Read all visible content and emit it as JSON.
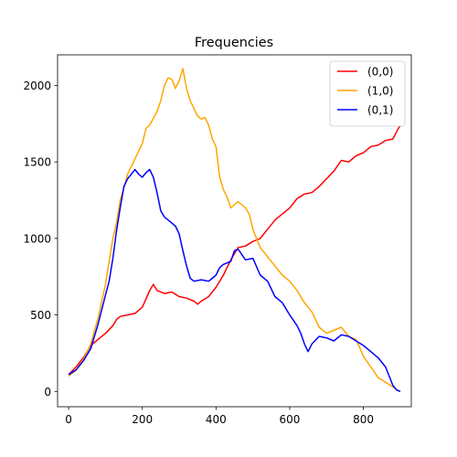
{
  "chart_data": {
    "type": "line",
    "title": "Frequencies",
    "xlabel": "",
    "ylabel": "",
    "xlim": [
      -30,
      930
    ],
    "ylim": [
      -100,
      2200
    ],
    "xticks": [
      0,
      200,
      400,
      600,
      800
    ],
    "yticks": [
      0,
      500,
      1000,
      1500,
      2000
    ],
    "grid": false,
    "legend_position": "top-right",
    "series": [
      {
        "name": "(0,0)",
        "color": "#ff0000",
        "points": [
          [
            0,
            110
          ],
          [
            20,
            160
          ],
          [
            40,
            220
          ],
          [
            60,
            300
          ],
          [
            80,
            340
          ],
          [
            100,
            380
          ],
          [
            120,
            430
          ],
          [
            130,
            470
          ],
          [
            140,
            490
          ],
          [
            160,
            500
          ],
          [
            180,
            510
          ],
          [
            200,
            550
          ],
          [
            220,
            660
          ],
          [
            230,
            700
          ],
          [
            240,
            660
          ],
          [
            260,
            640
          ],
          [
            280,
            650
          ],
          [
            300,
            620
          ],
          [
            320,
            610
          ],
          [
            340,
            590
          ],
          [
            350,
            570
          ],
          [
            360,
            590
          ],
          [
            380,
            620
          ],
          [
            400,
            680
          ],
          [
            420,
            760
          ],
          [
            440,
            860
          ],
          [
            460,
            940
          ],
          [
            480,
            950
          ],
          [
            500,
            980
          ],
          [
            520,
            1000
          ],
          [
            540,
            1060
          ],
          [
            560,
            1120
          ],
          [
            580,
            1160
          ],
          [
            600,
            1200
          ],
          [
            620,
            1260
          ],
          [
            640,
            1290
          ],
          [
            660,
            1300
          ],
          [
            680,
            1340
          ],
          [
            700,
            1390
          ],
          [
            720,
            1440
          ],
          [
            740,
            1510
          ],
          [
            760,
            1500
          ],
          [
            780,
            1540
          ],
          [
            800,
            1560
          ],
          [
            820,
            1600
          ],
          [
            840,
            1610
          ],
          [
            860,
            1640
          ],
          [
            880,
            1650
          ],
          [
            895,
            1720
          ],
          [
            900,
            1735
          ]
        ]
      },
      {
        "name": "(1,0)",
        "color": "#ffa500",
        "points": [
          [
            0,
            100
          ],
          [
            20,
            140
          ],
          [
            40,
            210
          ],
          [
            60,
            310
          ],
          [
            80,
            480
          ],
          [
            100,
            700
          ],
          [
            110,
            850
          ],
          [
            120,
            1000
          ],
          [
            130,
            1100
          ],
          [
            140,
            1250
          ],
          [
            150,
            1330
          ],
          [
            160,
            1420
          ],
          [
            180,
            1520
          ],
          [
            200,
            1620
          ],
          [
            210,
            1720
          ],
          [
            220,
            1740
          ],
          [
            240,
            1830
          ],
          [
            250,
            1900
          ],
          [
            260,
            2000
          ],
          [
            270,
            2050
          ],
          [
            280,
            2040
          ],
          [
            290,
            1980
          ],
          [
            300,
            2030
          ],
          [
            310,
            2110
          ],
          [
            320,
            1980
          ],
          [
            330,
            1900
          ],
          [
            340,
            1850
          ],
          [
            350,
            1800
          ],
          [
            360,
            1780
          ],
          [
            370,
            1790
          ],
          [
            380,
            1740
          ],
          [
            390,
            1650
          ],
          [
            400,
            1600
          ],
          [
            410,
            1400
          ],
          [
            420,
            1320
          ],
          [
            430,
            1270
          ],
          [
            440,
            1200
          ],
          [
            460,
            1240
          ],
          [
            480,
            1200
          ],
          [
            490,
            1160
          ],
          [
            500,
            1060
          ],
          [
            510,
            1000
          ],
          [
            520,
            940
          ],
          [
            540,
            880
          ],
          [
            560,
            820
          ],
          [
            580,
            760
          ],
          [
            600,
            720
          ],
          [
            620,
            660
          ],
          [
            640,
            580
          ],
          [
            660,
            520
          ],
          [
            680,
            420
          ],
          [
            700,
            380
          ],
          [
            720,
            400
          ],
          [
            740,
            420
          ],
          [
            760,
            360
          ],
          [
            780,
            340
          ],
          [
            800,
            230
          ],
          [
            820,
            160
          ],
          [
            840,
            90
          ],
          [
            860,
            60
          ],
          [
            880,
            30
          ],
          [
            890,
            10
          ],
          [
            900,
            0
          ]
        ]
      },
      {
        "name": "(0,1)",
        "color": "#0000ff",
        "points": [
          [
            0,
            110
          ],
          [
            20,
            140
          ],
          [
            40,
            200
          ],
          [
            60,
            280
          ],
          [
            80,
            440
          ],
          [
            100,
            630
          ],
          [
            110,
            720
          ],
          [
            120,
            870
          ],
          [
            130,
            1050
          ],
          [
            140,
            1200
          ],
          [
            150,
            1340
          ],
          [
            160,
            1390
          ],
          [
            170,
            1420
          ],
          [
            180,
            1450
          ],
          [
            190,
            1420
          ],
          [
            200,
            1400
          ],
          [
            210,
            1430
          ],
          [
            220,
            1450
          ],
          [
            230,
            1400
          ],
          [
            240,
            1300
          ],
          [
            250,
            1180
          ],
          [
            260,
            1140
          ],
          [
            280,
            1100
          ],
          [
            290,
            1080
          ],
          [
            300,
            1030
          ],
          [
            310,
            920
          ],
          [
            320,
            820
          ],
          [
            330,
            740
          ],
          [
            340,
            720
          ],
          [
            360,
            730
          ],
          [
            380,
            720
          ],
          [
            400,
            760
          ],
          [
            410,
            810
          ],
          [
            420,
            830
          ],
          [
            440,
            850
          ],
          [
            450,
            920
          ],
          [
            460,
            930
          ],
          [
            480,
            860
          ],
          [
            500,
            870
          ],
          [
            520,
            760
          ],
          [
            540,
            720
          ],
          [
            560,
            620
          ],
          [
            580,
            580
          ],
          [
            600,
            500
          ],
          [
            620,
            430
          ],
          [
            630,
            380
          ],
          [
            640,
            310
          ],
          [
            650,
            260
          ],
          [
            660,
            310
          ],
          [
            680,
            360
          ],
          [
            700,
            350
          ],
          [
            720,
            330
          ],
          [
            740,
            370
          ],
          [
            760,
            360
          ],
          [
            780,
            330
          ],
          [
            800,
            300
          ],
          [
            820,
            260
          ],
          [
            840,
            220
          ],
          [
            860,
            160
          ],
          [
            870,
            100
          ],
          [
            880,
            40
          ],
          [
            890,
            10
          ],
          [
            900,
            0
          ]
        ]
      }
    ]
  }
}
